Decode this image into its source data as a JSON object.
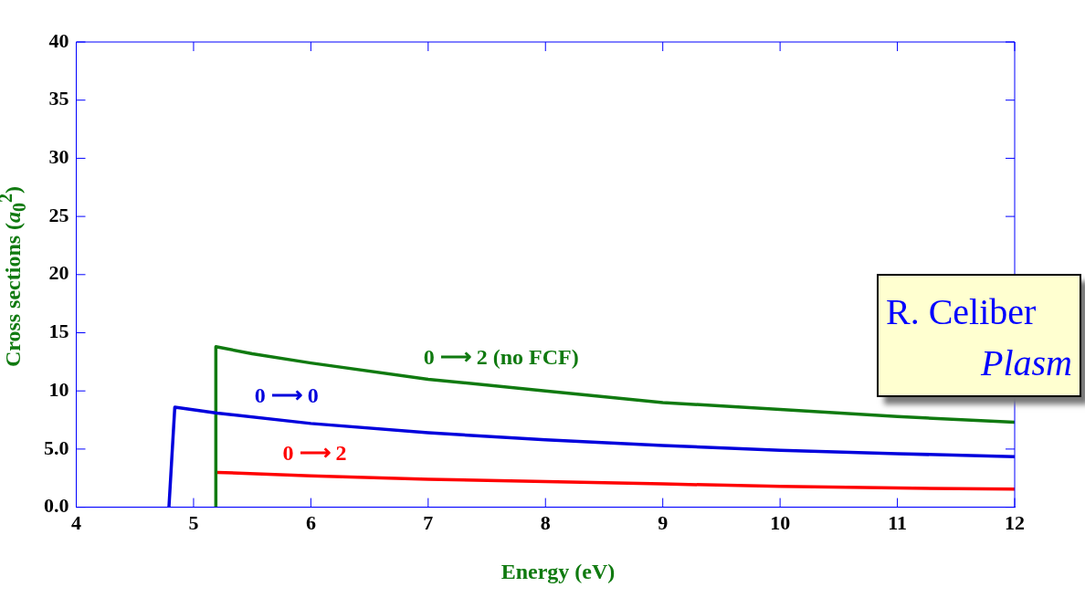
{
  "chart_data": {
    "type": "line",
    "xlabel": "Energy (eV)",
    "ylabel": "Cross sections (a$_{0}$$^{2}$)",
    "xlim": [
      4,
      12
    ],
    "xticks": [
      4,
      5,
      6,
      7,
      8,
      9,
      10,
      11,
      12
    ],
    "ylim": [
      0,
      40
    ],
    "yticks": [
      {
        "value": 0,
        "label": "0.0"
      },
      {
        "value": 5,
        "label": "5.0"
      },
      10,
      15,
      20,
      25,
      30,
      35,
      40
    ],
    "grid": false,
    "legend": false,
    "marker": "none",
    "line_style": "solid",
    "series": [
      {
        "name": "0 ⟶ 0",
        "color": "#0000dd",
        "x": [
          4.79,
          4.84,
          5.2,
          6,
          7,
          8,
          9,
          10,
          11,
          12
        ],
        "values": [
          0,
          8.6,
          8.1,
          7.2,
          6.4,
          5.8,
          5.3,
          4.9,
          4.6,
          4.35
        ]
      },
      {
        "name": "0 ⟶ 2 (no FCF)",
        "color": "#107a10",
        "x": [
          5.19,
          5.19,
          5.5,
          6,
          7,
          8,
          9,
          10,
          11,
          12
        ],
        "values": [
          0,
          13.8,
          13.2,
          12.4,
          11.0,
          10.0,
          9.0,
          8.4,
          7.8,
          7.3
        ]
      },
      {
        "name": "0 ⟶ 2",
        "color": "#ff0000",
        "x": [
          5.2,
          6,
          7,
          8,
          9,
          10,
          11,
          12
        ],
        "values": [
          3.0,
          2.7,
          2.4,
          2.2,
          2.0,
          1.8,
          1.65,
          1.55
        ]
      }
    ],
    "annotations": [
      "R. Celiber",
      "Plasm"
    ]
  }
}
